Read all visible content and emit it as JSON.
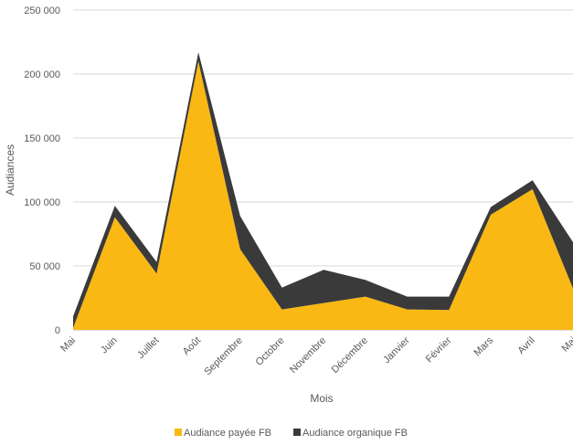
{
  "chart_data": {
    "type": "area",
    "stacked": true,
    "categories": [
      "Mai",
      "Juin",
      "Juillet",
      "Août",
      "Septembre",
      "Octobre",
      "Novembre",
      "Décembre",
      "Janvier",
      "Février",
      "Mars",
      "Avril",
      "Mai"
    ],
    "series": [
      {
        "name": "Audiance payée FB",
        "color": "#F9B813",
        "values": [
          1500,
          88000,
          44000,
          210000,
          63000,
          16000,
          21000,
          26000,
          16000,
          15500,
          90000,
          110000,
          30000
        ]
      },
      {
        "name": "Audiance organique FB",
        "color": "#3A3A3A",
        "values": [
          9000,
          9000,
          9000,
          7000,
          26000,
          17000,
          26000,
          13000,
          10000,
          10500,
          6000,
          7000,
          37000
        ]
      }
    ],
    "xlabel": "Mois",
    "ylabel": "Audiances",
    "ylim": [
      0,
      250000
    ],
    "yticks": [
      "0",
      "50 000",
      "100 000",
      "150 000",
      "200 000",
      "250 000"
    ],
    "grid": true,
    "legend_position": "bottom"
  }
}
